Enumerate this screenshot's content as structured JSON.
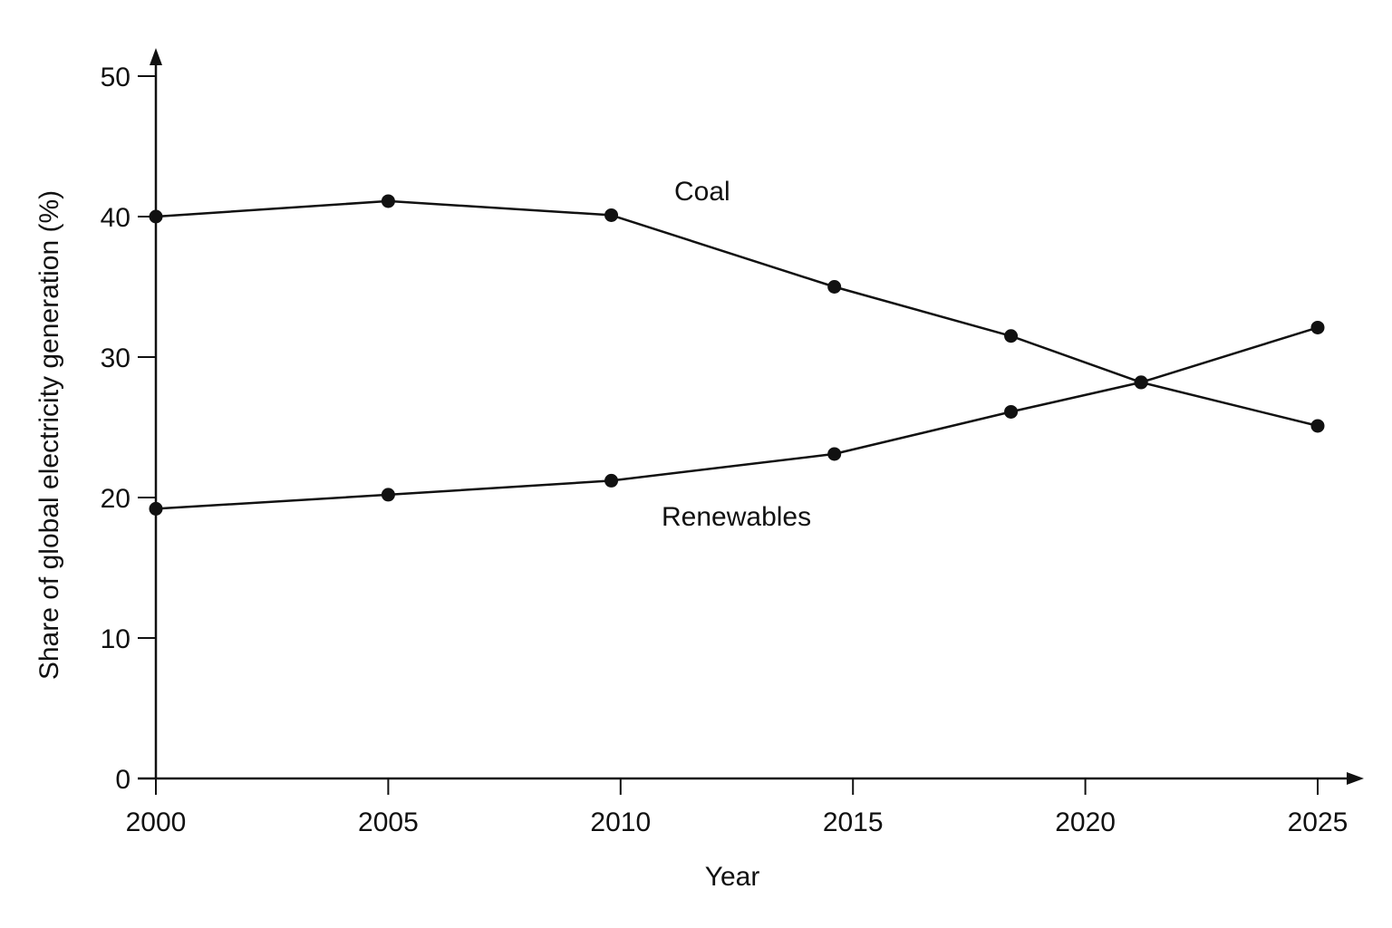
{
  "chart_data": {
    "type": "line",
    "title": "",
    "xlabel": "Year",
    "ylabel": "Share of global electricity generation (%)",
    "xlim": [
      2000,
      2025
    ],
    "ylim": [
      0,
      50
    ],
    "x_ticks": [
      2000,
      2005,
      2010,
      2015,
      2020,
      2025
    ],
    "y_ticks": [
      0,
      10,
      20,
      30,
      40,
      50
    ],
    "grid": false,
    "legend": "none",
    "series": [
      {
        "name": "Coal",
        "x": [
          2000,
          2005,
          2009.8,
          2014.6,
          2018.4,
          2021.2,
          2025
        ],
        "y": [
          40,
          41.1,
          40.1,
          35,
          31.5,
          28.2,
          25.1
        ]
      },
      {
        "name": "Renewables",
        "x": [
          2000,
          2005,
          2009.8,
          2014.6,
          2018.4,
          2021.2,
          2025
        ],
        "y": [
          19.2,
          20.2,
          21.2,
          23.1,
          26.1,
          28.2,
          32.1
        ]
      }
    ],
    "colors": {
      "line": "#111111",
      "text": "#111111"
    }
  }
}
